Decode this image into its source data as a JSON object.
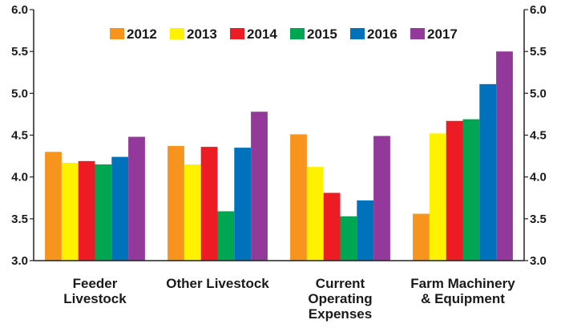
{
  "chart_data": {
    "type": "bar",
    "categories": [
      [
        "Feeder",
        "Livestock"
      ],
      [
        "Other Livestock"
      ],
      [
        "Current",
        "Operating",
        "Expenses"
      ],
      [
        "Farm Machinery",
        "& Equipment"
      ]
    ],
    "series": [
      {
        "name": "2012",
        "color": "#F7941D",
        "values": [
          4.3,
          4.37,
          4.51,
          3.56
        ]
      },
      {
        "name": "2013",
        "color": "#FFF200",
        "values": [
          4.17,
          4.15,
          4.12,
          4.52
        ]
      },
      {
        "name": "2014",
        "color": "#ED1C24",
        "values": [
          4.19,
          4.36,
          3.81,
          4.67
        ]
      },
      {
        "name": "2015",
        "color": "#00A651",
        "values": [
          4.15,
          3.59,
          3.53,
          4.69
        ]
      },
      {
        "name": "2016",
        "color": "#0072BC",
        "values": [
          4.24,
          4.35,
          3.72,
          5.11
        ]
      },
      {
        "name": "2017",
        "color": "#92399B",
        "values": [
          4.48,
          4.78,
          4.49,
          5.5
        ]
      }
    ],
    "ylim": [
      3.0,
      6.0
    ],
    "yticks": [
      "3.0",
      "3.5",
      "4.0",
      "4.5",
      "5.0",
      "5.5",
      "6.0"
    ],
    "ytick_values": [
      3.0,
      3.5,
      4.0,
      4.5,
      5.0,
      5.5,
      6.0
    ],
    "grid": false,
    "legend": "top-center"
  }
}
